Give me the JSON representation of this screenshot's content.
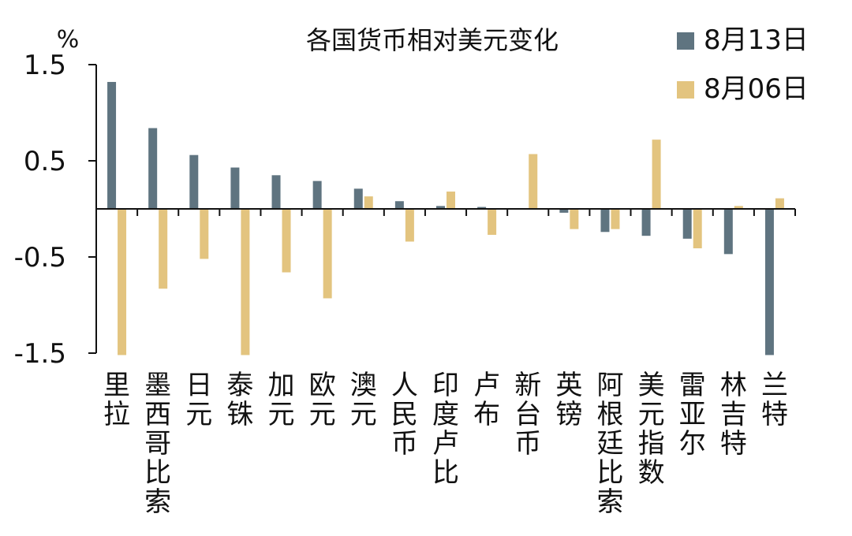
{
  "chart_data": {
    "type": "bar",
    "title": "各国货币相对美元变化",
    "ylabel": "",
    "unit": "%",
    "ylim": [
      -1.5,
      1.5
    ],
    "yticks": [
      "1.5",
      "0.5",
      "-0.5",
      "-1.5"
    ],
    "ytick_values": [
      1.5,
      0.5,
      -0.5,
      -1.5
    ],
    "legend_position": "top-right",
    "categories": [
      "里拉",
      "墨西哥比索",
      "日元",
      "泰铢",
      "加元",
      "欧元",
      "澳元",
      "人民币",
      "印度卢比",
      "卢布",
      "新台币",
      "英镑",
      "阿根廷比索",
      "美元指数",
      "雷亚尔",
      "林吉特",
      "兰特"
    ],
    "series": [
      {
        "name": "8月13日",
        "color": "#5f7480",
        "values": [
          1.32,
          0.84,
          0.56,
          0.43,
          0.35,
          0.29,
          0.21,
          0.08,
          0.03,
          0.02,
          0.0,
          -0.04,
          -0.24,
          -0.28,
          -0.31,
          -0.47,
          -1.52
        ]
      },
      {
        "name": "8月06日",
        "color": "#e3c47f",
        "values": [
          -1.52,
          -0.83,
          -0.52,
          -1.52,
          -0.66,
          -0.93,
          0.13,
          -0.34,
          0.18,
          -0.27,
          0.57,
          -0.21,
          -0.21,
          0.72,
          -0.41,
          0.03,
          0.11
        ]
      }
    ]
  }
}
